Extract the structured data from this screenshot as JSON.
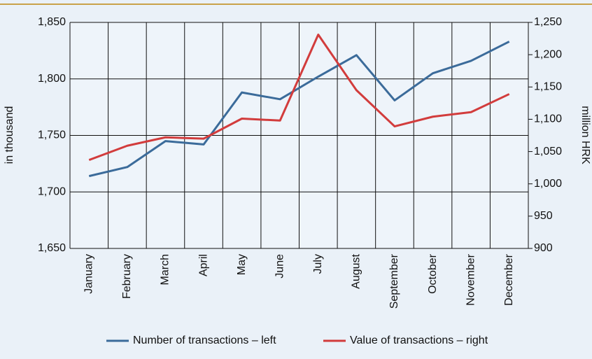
{
  "chart_data": {
    "type": "line",
    "categories": [
      "January",
      "February",
      "March",
      "April",
      "May",
      "June",
      "July",
      "August",
      "September",
      "October",
      "November",
      "December"
    ],
    "series": [
      {
        "name": "Number of transactions – left",
        "color": "#3b6b9a",
        "values": [
          1714,
          1722,
          1745,
          1742,
          1788,
          1782,
          1802,
          1821,
          1781,
          1805,
          1816,
          1833
        ]
      },
      {
        "name": "Value of transactions – right",
        "color": "#d23c3c",
        "axis": "y2",
        "values": [
          1037,
          1059,
          1072,
          1070,
          1101,
          1098,
          1231,
          1145,
          1089,
          1104,
          1111,
          1139
        ]
      }
    ],
    "ylabel": "in thousand",
    "y2label": "million HRK",
    "ylim": [
      1650,
      1850
    ],
    "yticks": [
      {
        "value": 1650,
        "label": "1,650"
      },
      {
        "value": 1700,
        "label": "1,700"
      },
      {
        "value": 1750,
        "label": "1,750"
      },
      {
        "value": 1800,
        "label": "1,800"
      },
      {
        "value": 1850,
        "label": "1,850"
      }
    ],
    "y2lim": [
      900,
      1250
    ],
    "y2ticks": [
      900,
      950,
      {
        "value": 1000,
        "label": "1,000"
      },
      {
        "value": 1050,
        "label": "1,050"
      },
      {
        "value": 1100,
        "label": "1,100"
      },
      {
        "value": 1150,
        "label": "1,150"
      },
      {
        "value": 1200,
        "label": "1,200"
      },
      {
        "value": 1250,
        "label": "1,250"
      }
    ],
    "grid": true,
    "legend": "bottom"
  }
}
